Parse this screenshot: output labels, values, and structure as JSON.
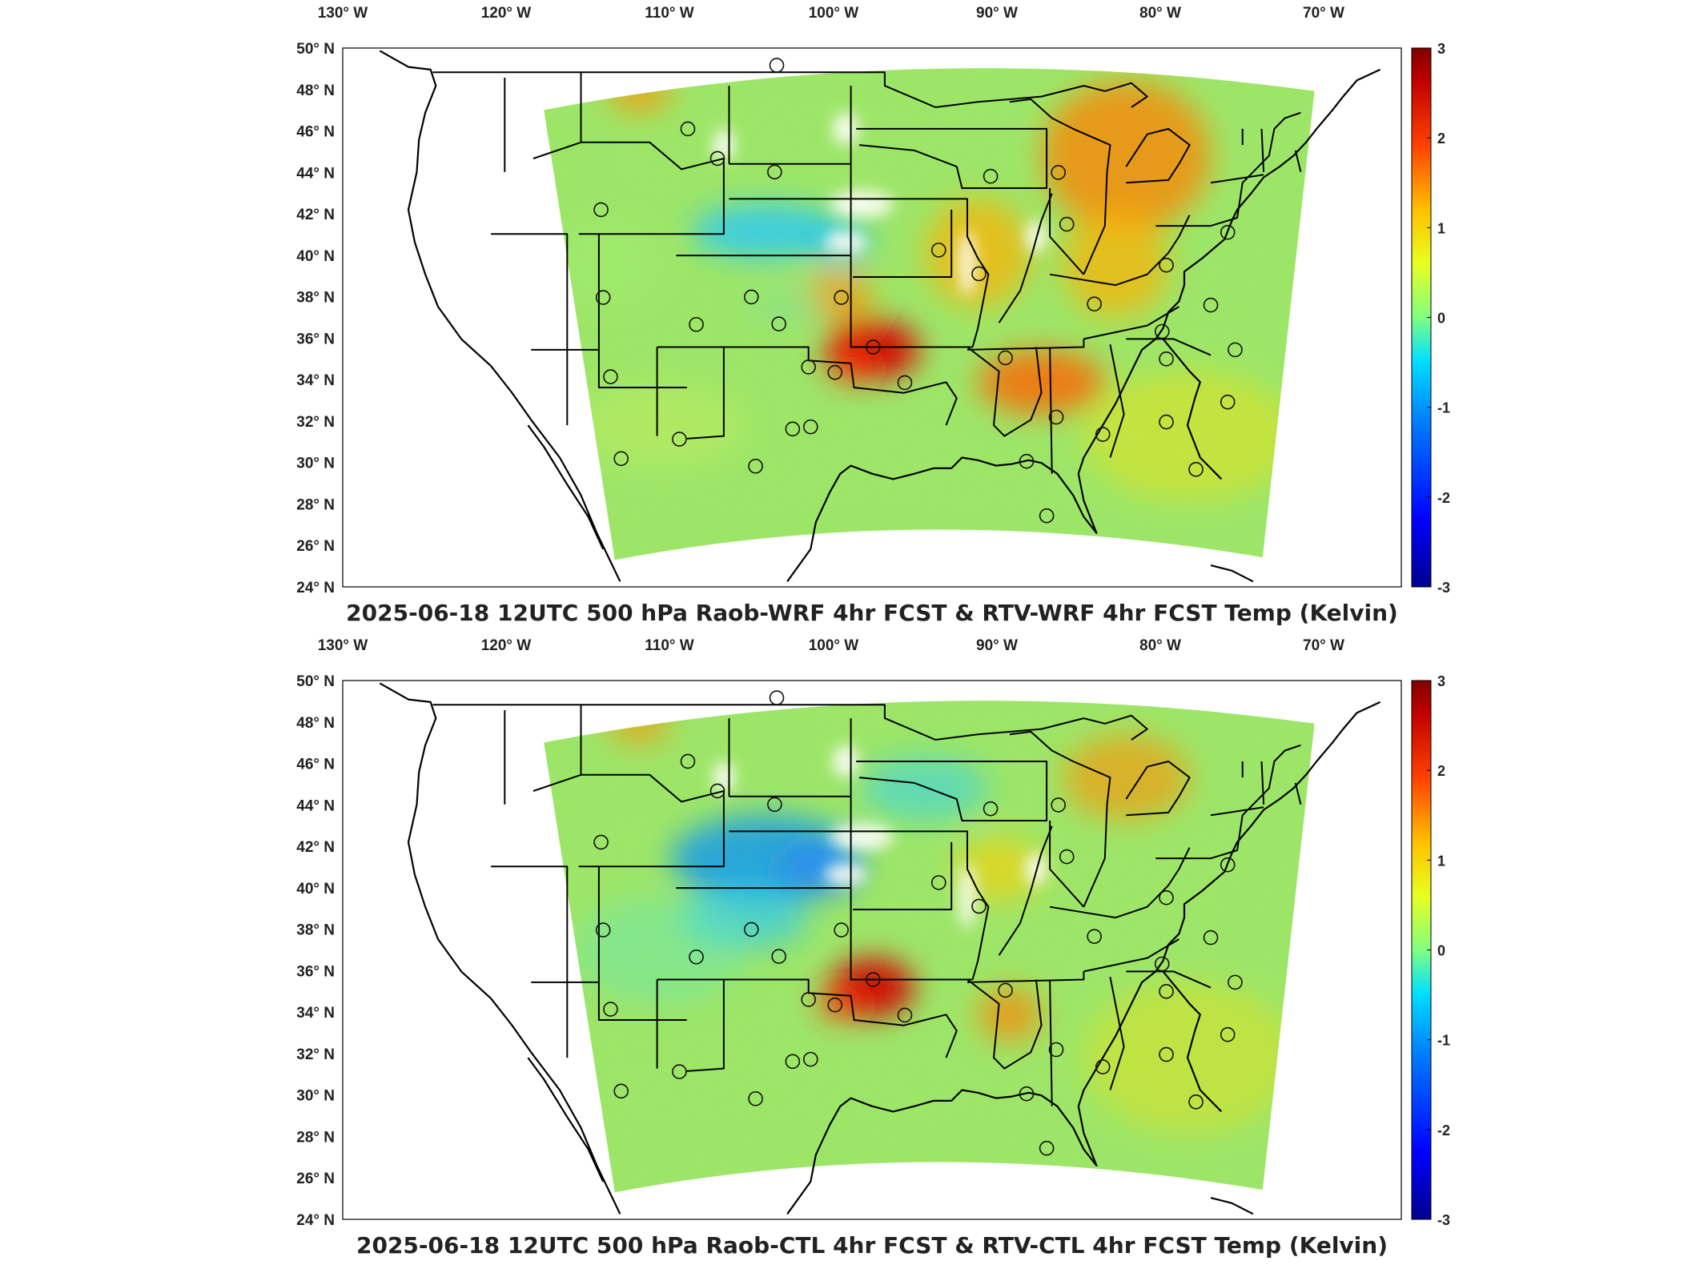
{
  "figure": {
    "panels": [
      {
        "id": "wrf",
        "title": "2025-06-18 12UTC 500 hPa Raob-WRF 4hr FCST & RTV-WRF 4hr FCST Temp (Kelvin)",
        "lon_ticks": [
          "130° W",
          "120° W",
          "110° W",
          "100° W",
          "90° W",
          "80° W",
          "70° W"
        ],
        "lat_ticks": [
          "50° N",
          "48° N",
          "46° N",
          "44° N",
          "42° N",
          "40° N",
          "38° N",
          "36° N",
          "34° N",
          "32° N",
          "30° N",
          "28° N",
          "26° N",
          "24° N"
        ],
        "colorbar_ticks": [
          "3",
          "2",
          "1",
          "0",
          "-1",
          "-2",
          "-3"
        ]
      },
      {
        "id": "ctl",
        "title": "2025-06-18 12UTC 500 hPa Raob-CTL 4hr FCST & RTV-CTL 4hr FCST Temp (Kelvin)",
        "lon_ticks": [
          "130° W",
          "120° W",
          "110° W",
          "100° W",
          "90° W",
          "80° W",
          "70° W"
        ],
        "lat_ticks": [
          "50° N",
          "48° N",
          "46° N",
          "44° N",
          "42° N",
          "40° N",
          "38° N",
          "36° N",
          "34° N",
          "32° N",
          "30° N",
          "28° N",
          "26° N",
          "24° N"
        ],
        "colorbar_ticks": [
          "3",
          "2",
          "1",
          "0",
          "-1",
          "-2",
          "-3"
        ]
      }
    ],
    "colormap": [
      "#00008f",
      "#0000ff",
      "#0080ff",
      "#00ffff",
      "#80ff80",
      "#ffff00",
      "#ff8000",
      "#ff0000",
      "#800000"
    ],
    "colorbar_range": [
      -3,
      3
    ],
    "field_base_color": "#9be66a"
  }
}
